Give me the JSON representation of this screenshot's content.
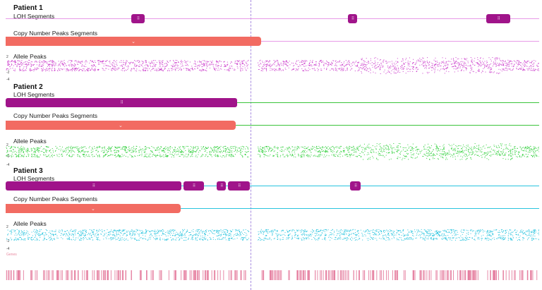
{
  "patients": [
    {
      "id": "p1",
      "title": "Patient 1",
      "loh_label": "LOH Segments",
      "cn_label": "Copy Number Peaks Segments",
      "allele_label": "Allele Peaks",
      "color": "#cc3fcc",
      "line_color": "#e89be8",
      "loh_color": "#a0148a",
      "cn_color": "#f26b62",
      "loh_segments": [
        {
          "start_frac": 0.236,
          "end_frac": 0.26
        },
        {
          "start_frac": 0.641,
          "end_frac": 0.659
        },
        {
          "start_frac": 0.901,
          "end_frac": 0.946
        }
      ],
      "cn_segment": {
        "end_frac": 0.479
      },
      "ticks": [
        "2",
        "-2",
        "-4"
      ]
    },
    {
      "id": "p2",
      "title": "Patient 2",
      "loh_label": "LOH Segments",
      "cn_label": "Copy Number Peaks Segments",
      "allele_label": "Allele Peaks",
      "color": "#2fcf3a",
      "line_color": "#3bc43b",
      "loh_color": "#a0148a",
      "cn_color": "#f26b62",
      "loh_segments": [
        {
          "start_frac": 0.0,
          "end_frac": 0.434
        }
      ],
      "cn_segment": {
        "end_frac": 0.431
      },
      "ticks": [
        "2",
        "-2",
        "-4"
      ]
    },
    {
      "id": "p3",
      "title": "Patient 3",
      "loh_label": "LOH Segments",
      "cn_label": "Copy Number Peaks Segments",
      "allele_label": "Allele Peaks",
      "color": "#29c4de",
      "line_color": "#29c4de",
      "loh_color": "#a0148a",
      "cn_color": "#f26b62",
      "loh_segments": [
        {
          "start_frac": 0.0,
          "end_frac": 0.329
        },
        {
          "start_frac": 0.333,
          "end_frac": 0.372
        },
        {
          "start_frac": 0.396,
          "end_frac": 0.413
        },
        {
          "start_frac": 0.417,
          "end_frac": 0.458
        },
        {
          "start_frac": 0.646,
          "end_frac": 0.665
        }
      ],
      "cn_segment": {
        "end_frac": 0.328
      },
      "ticks": [
        "2",
        "-2",
        "-4"
      ]
    }
  ],
  "bottom_label": "Genes",
  "bottom_color": "#e57fa0"
}
